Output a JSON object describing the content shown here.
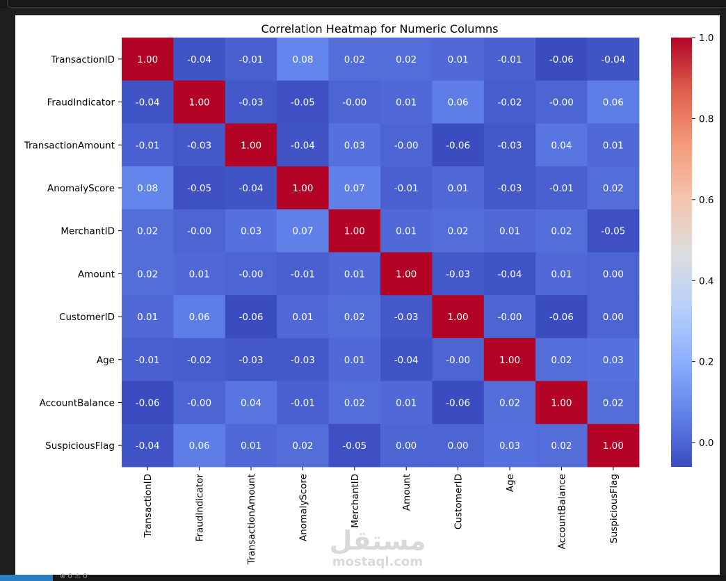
{
  "chart_data": {
    "type": "heatmap",
    "title": "Correlation Heatmap for Numeric Columns",
    "row_labels": [
      "TransactionID",
      "FraudIndicator",
      "TransactionAmount",
      "AnomalyScore",
      "MerchantID",
      "Amount",
      "CustomerID",
      "Age",
      "AccountBalance",
      "SuspiciousFlag"
    ],
    "col_labels": [
      "TransactionID",
      "FraudIndicator",
      "TransactionAmount",
      "AnomalyScore",
      "MerchantID",
      "Amount",
      "CustomerID",
      "Age",
      "AccountBalance",
      "SuspiciousFlag"
    ],
    "values": [
      [
        1.0,
        -0.04,
        -0.01,
        0.08,
        0.02,
        0.02,
        0.01,
        -0.01,
        -0.06,
        -0.04
      ],
      [
        -0.04,
        1.0,
        -0.03,
        -0.05,
        -0.0,
        0.01,
        0.06,
        -0.02,
        -0.0,
        0.06
      ],
      [
        -0.01,
        -0.03,
        1.0,
        -0.04,
        0.03,
        -0.0,
        -0.06,
        -0.03,
        0.04,
        0.01
      ],
      [
        0.08,
        -0.05,
        -0.04,
        1.0,
        0.07,
        -0.01,
        0.01,
        -0.03,
        -0.01,
        0.02
      ],
      [
        0.02,
        -0.0,
        0.03,
        0.07,
        1.0,
        0.01,
        0.02,
        0.01,
        0.02,
        -0.05
      ],
      [
        0.02,
        0.01,
        -0.0,
        -0.01,
        0.01,
        1.0,
        -0.03,
        -0.04,
        0.01,
        0.0
      ],
      [
        0.01,
        0.06,
        -0.06,
        0.01,
        0.02,
        -0.03,
        1.0,
        -0.0,
        -0.06,
        0.0
      ],
      [
        -0.01,
        -0.02,
        -0.03,
        -0.03,
        0.01,
        -0.04,
        -0.0,
        1.0,
        0.02,
        0.03
      ],
      [
        -0.06,
        -0.0,
        0.04,
        -0.01,
        0.02,
        0.01,
        -0.06,
        0.02,
        1.0,
        0.02
      ],
      [
        -0.04,
        0.06,
        0.01,
        0.02,
        -0.05,
        0.0,
        0.0,
        0.03,
        0.02,
        1.0
      ]
    ],
    "value_format": "2 decimals",
    "colormap": "coolwarm",
    "vmin": -0.06,
    "vmax": 1.0,
    "colorbar_ticks": [
      "0.0",
      "0.2",
      "0.4",
      "0.6",
      "0.8",
      "1.0"
    ],
    "colorbar_tick_values": [
      0.0,
      0.2,
      0.4,
      0.6,
      0.8,
      1.0
    ],
    "grid": false,
    "colorbar_position": "right"
  },
  "watermark": {
    "text": "mostaql.com",
    "arabic": "مستقل"
  },
  "status_icons": "⊗ 0 ⚠ 0"
}
